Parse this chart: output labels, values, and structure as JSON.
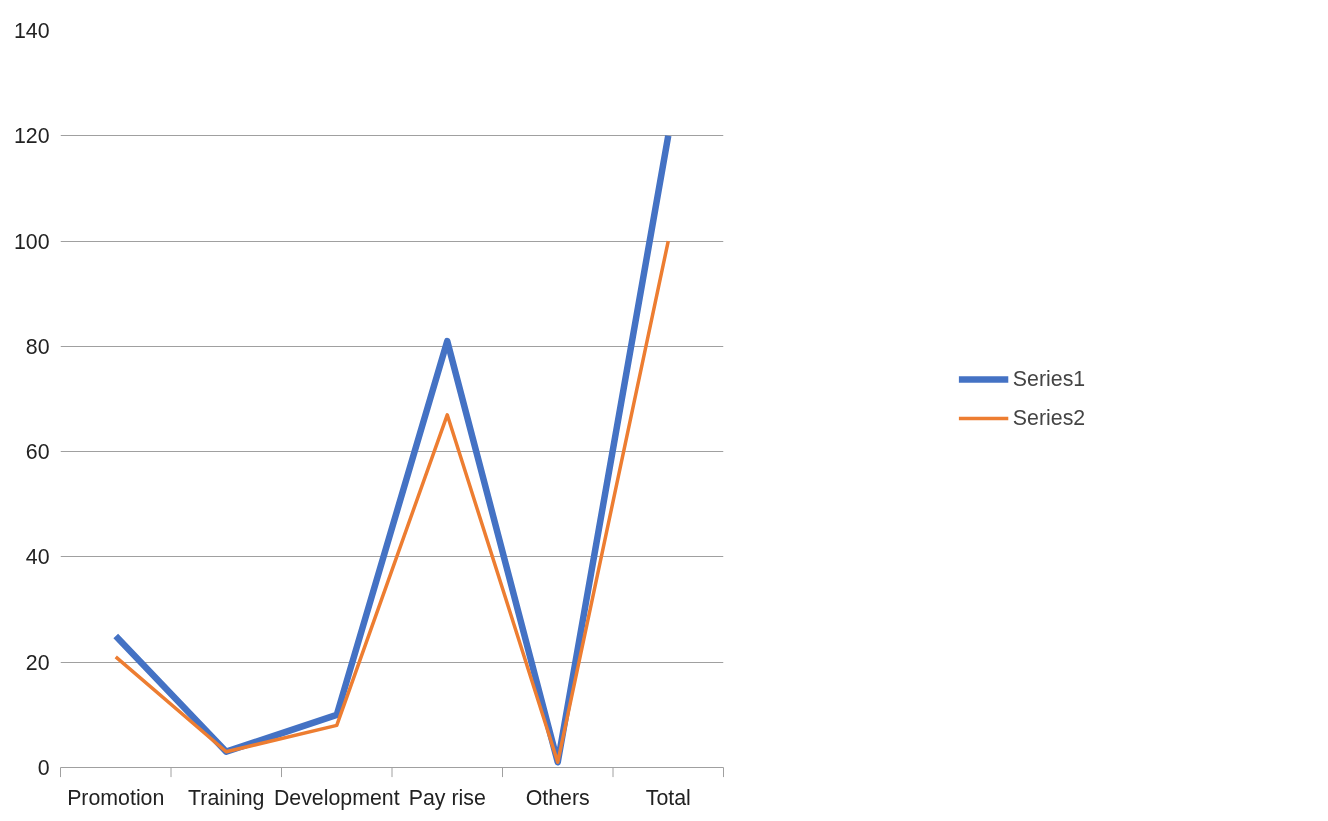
{
  "chart_data": {
    "type": "line",
    "categories": [
      "Promotion",
      "Training",
      "Development",
      "Pay rise",
      "Others",
      "Total"
    ],
    "series": [
      {
        "name": "Series1",
        "color": "#4472c4",
        "values": [
          25,
          3,
          10,
          81,
          1,
          120
        ]
      },
      {
        "name": "Series2",
        "color": "#ed7d31",
        "values": [
          21,
          3,
          8,
          67,
          1,
          100
        ]
      }
    ],
    "ylim": [
      0,
      140
    ],
    "yticks": [
      0,
      20,
      40,
      60,
      80,
      100,
      120,
      140
    ],
    "grid": "y",
    "legend": "right",
    "marker": "none",
    "line_style": "solid"
  }
}
